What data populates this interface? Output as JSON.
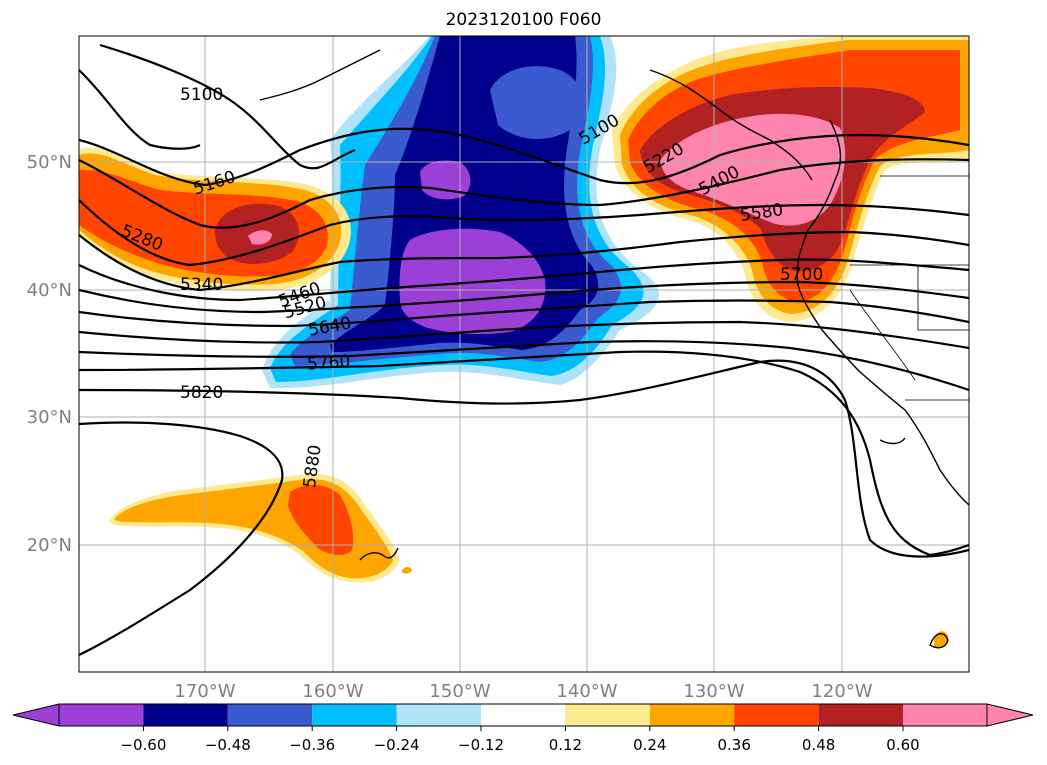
{
  "title": "2023120100 F060",
  "map": {
    "lat_labels": [
      "50°N",
      "40°N",
      "30°N",
      "20°N"
    ],
    "lon_labels": [
      "170°W",
      "160°W",
      "150°W",
      "140°W",
      "130°W",
      "120°W"
    ],
    "contour_labels": [
      "5100",
      "5100",
      "5160",
      "5220",
      "5280",
      "5340",
      "5400",
      "5460",
      "5520",
      "5580",
      "5640",
      "5700",
      "5760",
      "5820",
      "5880"
    ]
  },
  "colorbar": {
    "ticks": [
      "−0.60",
      "−0.48",
      "−0.36",
      "−0.24",
      "−0.12",
      "0.12",
      "0.24",
      "0.36",
      "0.48",
      "0.60"
    ],
    "colors": [
      "#9b3fd6",
      "#00008c",
      "#3a5bd0",
      "#00bfff",
      "#aee3fa",
      "#ffffff",
      "#fde98f",
      "#ffa500",
      "#ff4500",
      "#b22222",
      "#ff85b0"
    ]
  },
  "colors": {
    "deep_purple": "#9b3fd6",
    "navy": "#00008c",
    "blue": "#3a5bd0",
    "sky": "#00bfff",
    "pale_blue": "#aee3fa",
    "pale_yellow": "#fde98f",
    "orange": "#ffa500",
    "red_orange": "#ff4500",
    "dark_red": "#b22222",
    "pink": "#ff85b0"
  }
}
